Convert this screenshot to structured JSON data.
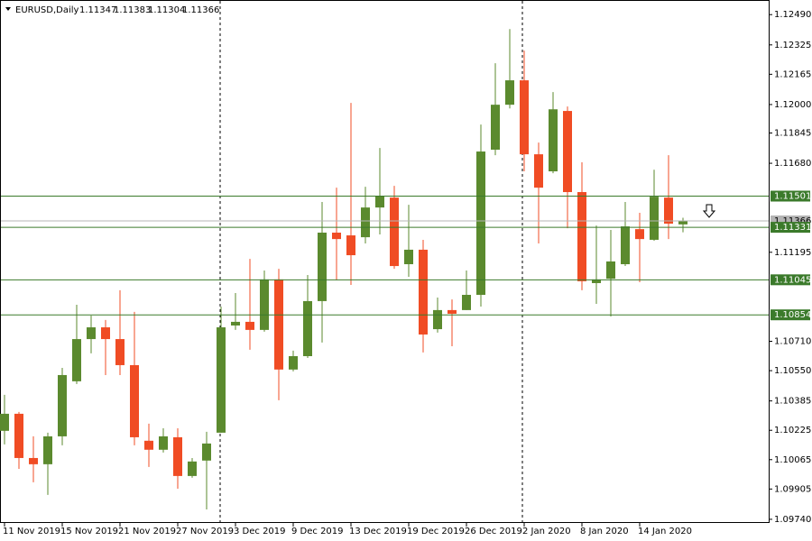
{
  "chart_data": {
    "type": "candlestick",
    "title": "EURUSD,Daily",
    "categories": [
      "11 Nov 2019",
      null,
      null,
      null,
      "15 Nov 2019",
      null,
      null,
      null,
      "21 Nov 2019",
      null,
      null,
      null,
      "27 Nov 2019",
      null,
      null,
      null,
      "3 Dec 2019",
      null,
      null,
      null,
      "9 Dec 2019",
      null,
      null,
      null,
      "13 Dec 2019",
      null,
      null,
      null,
      "19 Dec 2019",
      null,
      null,
      null,
      "26 Dec 2019",
      null,
      null,
      null,
      "2 Jan 2020",
      null,
      null,
      null,
      "8 Jan 2020",
      null,
      null,
      null,
      "14 Jan 2020",
      null,
      null,
      null
    ],
    "open": [
      1.10222,
      1.10315,
      1.10074,
      1.1004,
      1.10192,
      1.10492,
      1.10722,
      1.10786,
      1.10722,
      1.1058,
      1.10168,
      1.10119,
      1.10187,
      1.09976,
      1.1006,
      1.10212,
      1.10796,
      1.10816,
      1.10772,
      1.11047,
      1.10556,
      1.10629,
      1.10929,
      1.11302,
      1.11287,
      1.11277,
      1.11439,
      1.11493,
      1.1113,
      1.11209,
      1.10776,
      1.1088,
      1.1088,
      1.10963,
      1.11754,
      1.11999,
      1.12132,
      1.11729,
      1.11636,
      1.11965,
      1.11523,
      1.11027,
      1.11051,
      1.1113,
      1.11321,
      1.11263,
      1.11493,
      1.11347
    ],
    "high": [
      1.10418,
      1.10325,
      1.10192,
      1.10212,
      1.10565,
      1.10909,
      1.1085,
      1.10826,
      1.10988,
      1.1087,
      1.10261,
      1.10236,
      1.10236,
      1.10074,
      1.10217,
      1.10899,
      1.10973,
      1.11159,
      1.11096,
      1.11105,
      1.10659,
      1.11071,
      1.11469,
      1.11547,
      1.12009,
      1.11552,
      1.11763,
      1.11557,
      1.11454,
      1.11263,
      1.10948,
      1.10938,
      1.11096,
      1.11891,
      1.12225,
      1.12411,
      1.12294,
      1.11793,
      1.12068,
      1.11989,
      1.11685,
      1.11341,
      1.11317,
      1.11469,
      1.1141,
      1.11645,
      1.11724,
      1.11383
    ],
    "low": [
      1.10148,
      1.10015,
      1.09942,
      1.09873,
      1.10143,
      1.10477,
      1.10644,
      1.10526,
      1.10526,
      1.10143,
      1.10025,
      1.10104,
      1.09907,
      1.09966,
      1.09794,
      1.10212,
      1.10772,
      1.10664,
      1.10762,
      1.10389,
      1.10546,
      1.10619,
      1.10703,
      1.11042,
      1.11017,
      1.11243,
      1.11292,
      1.11105,
      1.11061,
      1.10649,
      1.10757,
      1.10683,
      1.1088,
      1.10899,
      1.11724,
      1.11979,
      1.11636,
      1.11243,
      1.11626,
      1.11326,
      1.10988,
      1.10914,
      1.10845,
      1.1112,
      1.11032,
      1.11258,
      1.11267,
      1.11304
    ],
    "close": [
      1.10315,
      1.10074,
      1.1004,
      1.10192,
      1.10526,
      1.10722,
      1.10786,
      1.10722,
      1.1058,
      1.10187,
      1.10119,
      1.10192,
      1.09976,
      1.10055,
      1.10153,
      1.10786,
      1.10816,
      1.10772,
      1.11047,
      1.10556,
      1.10629,
      1.10929,
      1.11302,
      1.11267,
      1.11179,
      1.11439,
      1.11503,
      1.1112,
      1.11209,
      1.10747,
      1.1088,
      1.1086,
      1.10963,
      1.11744,
      1.11999,
      1.12132,
      1.11729,
      1.11547,
      1.11974,
      1.11523,
      1.11037,
      1.11047,
      1.11145,
      1.11336,
      1.11267,
      1.11498,
      1.11351,
      1.11366
    ],
    "up_color": "#5b8a2e",
    "down_color": "#f04c24",
    "levels": [
      1.11501,
      1.11331,
      1.11045,
      1.10854
    ],
    "level_color": "#3b7a2b",
    "bid_color": "#b4b4b4",
    "ylim": [
      1.0972,
      1.1255
    ],
    "yticks": [
      {
        "value": 1.1249,
        "label": "1.12490"
      },
      1.12325,
      1.12165,
      {
        "value": 1.12,
        "label": "1.12000"
      },
      1.11845,
      {
        "value": 1.1168,
        "label": "1.11680"
      },
      1.11195,
      {
        "value": 1.1071,
        "label": "1.10710"
      },
      {
        "value": 1.1055,
        "label": "1.10550"
      },
      1.10385,
      1.10225,
      1.10065,
      1.09905,
      {
        "value": 1.0974,
        "label": "1.09740"
      }
    ]
  }
}
